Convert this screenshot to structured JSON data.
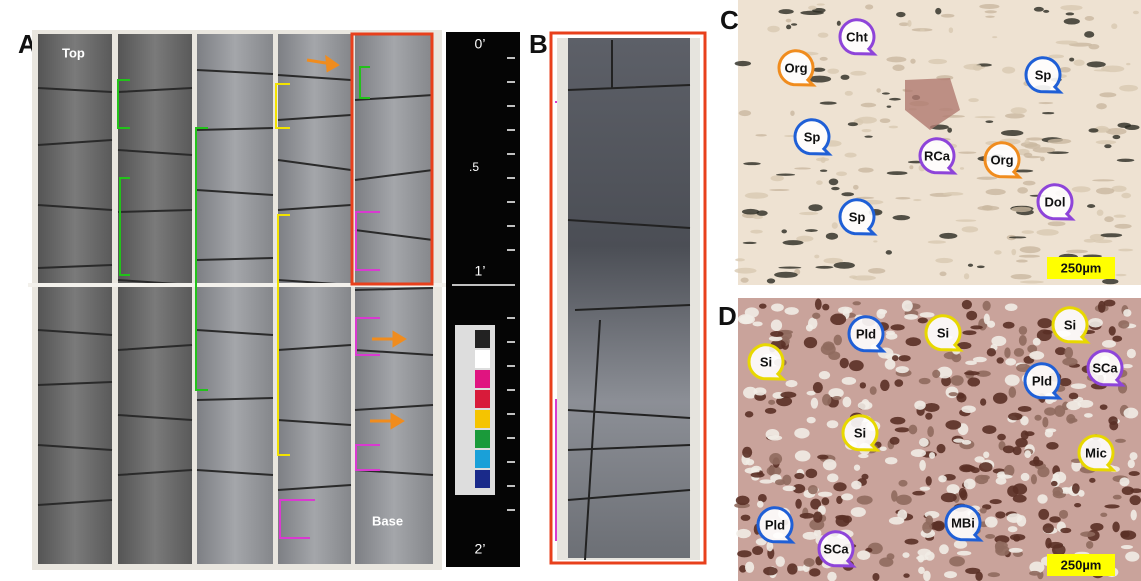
{
  "panels": [
    {
      "label": "A",
      "top_label": "Top",
      "base_label": "Base",
      "scale_ticks": [
        "0’",
        ".5",
        "1’",
        "2’"
      ]
    },
    {
      "label": "B"
    },
    {
      "label": "C",
      "scale_bar": "250µm",
      "markers": [
        {
          "label": "Cht",
          "color": "#8e44d9"
        },
        {
          "label": "Org",
          "color": "#f08c1e"
        },
        {
          "label": "Sp",
          "color": "#1f5fd6"
        },
        {
          "label": "Sp",
          "color": "#1f5fd6"
        },
        {
          "label": "RCa",
          "color": "#8e44d9"
        },
        {
          "label": "Org",
          "color": "#f08c1e"
        },
        {
          "label": "Dol",
          "color": "#8e44d9"
        },
        {
          "label": "Sp",
          "color": "#1f5fd6"
        }
      ]
    },
    {
      "label": "D",
      "scale_bar": "250µm",
      "markers": [
        {
          "label": "Pld",
          "color": "#1f5fd6"
        },
        {
          "label": "Si",
          "color": "#e8d800"
        },
        {
          "label": "Si",
          "color": "#e8d800"
        },
        {
          "label": "Si",
          "color": "#e8d800"
        },
        {
          "label": "SCa",
          "color": "#8e44d9"
        },
        {
          "label": "Pld",
          "color": "#1f5fd6"
        },
        {
          "label": "Si",
          "color": "#e8d800"
        },
        {
          "label": "Mic",
          "color": "#e8d800"
        },
        {
          "label": "Pld",
          "color": "#1f5fd6"
        },
        {
          "label": "MBi",
          "color": "#1f5fd6"
        },
        {
          "label": "SCa",
          "color": "#8e44d9"
        }
      ]
    }
  ]
}
